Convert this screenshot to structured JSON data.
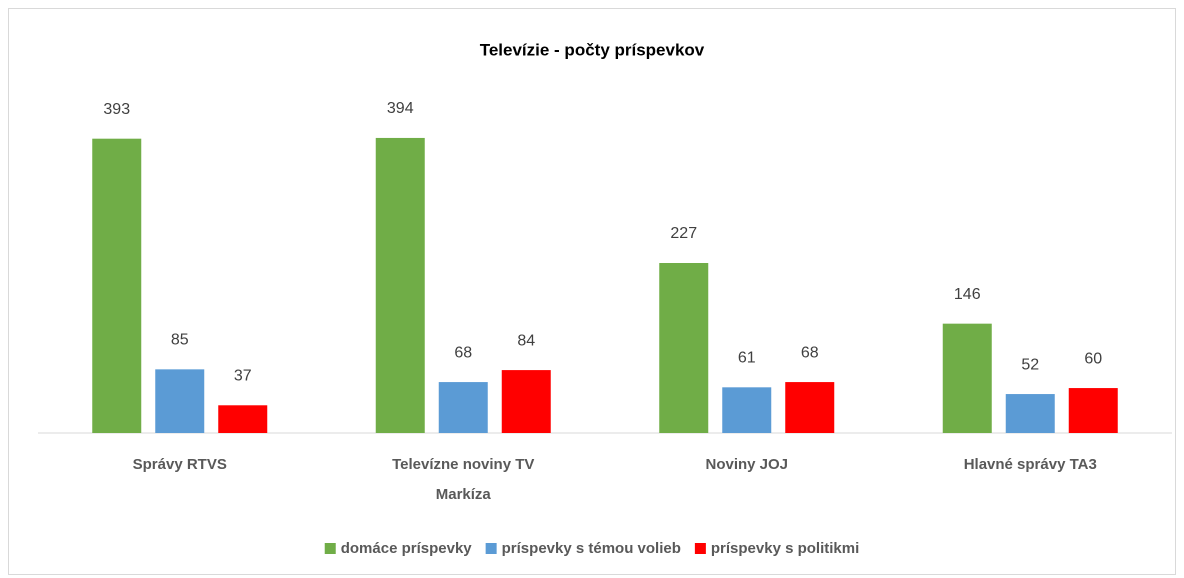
{
  "chart_data": {
    "type": "bar",
    "title": "Televízie - počty príspevkov",
    "categories": [
      "Správy RTVS",
      "Televízne noviny TV Markíza",
      "Noviny JOJ",
      "Hlavné správy TA3"
    ],
    "series": [
      {
        "name": "domáce príspevky",
        "color": "#70ad47",
        "values": [
          393,
          394,
          227,
          146
        ]
      },
      {
        "name": "príspevky s témou volieb",
        "color": "#5b9bd5",
        "values": [
          85,
          68,
          61,
          52
        ]
      },
      {
        "name": "príspevky s politikmi",
        "color": "#ff0000",
        "values": [
          37,
          84,
          68,
          60
        ]
      }
    ],
    "ylim": [
      0,
      450
    ],
    "legend": "bottom"
  }
}
